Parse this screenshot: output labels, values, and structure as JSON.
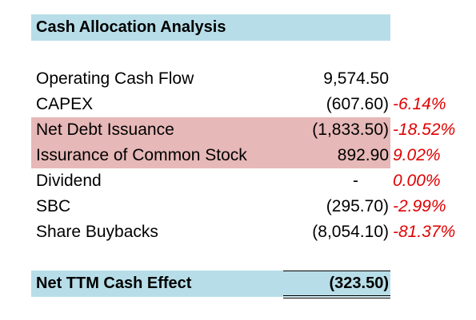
{
  "title": "Cash Allocation Analysis",
  "rows": [
    {
      "label": "Operating Cash Flow",
      "value": "9,574.50",
      "pct": "",
      "highlight": false
    },
    {
      "label": "CAPEX",
      "value": "(607.60)",
      "pct": "-6.14%",
      "highlight": false
    },
    {
      "label": "Net Debt Issuance",
      "value": "(1,833.50)",
      "pct": "-18.52%",
      "highlight": true
    },
    {
      "label": "Issurance of Common Stock",
      "value": "892.90",
      "pct": "9.02%",
      "highlight": true
    },
    {
      "label": "Dividend",
      "value": "-",
      "pct": "0.00%",
      "highlight": false
    },
    {
      "label": "SBC",
      "value": "(295.70)",
      "pct": "-2.99%",
      "highlight": false
    },
    {
      "label": "Share Buybacks",
      "value": "(8,054.10)",
      "pct": "-81.37%",
      "highlight": false
    }
  ],
  "total": {
    "label": "Net TTM Cash Effect",
    "value": "(323.50)"
  },
  "colors": {
    "header_fill": "#b7dee8",
    "highlight_fill": "#e6b8b7",
    "percent_text": "#e00000"
  }
}
